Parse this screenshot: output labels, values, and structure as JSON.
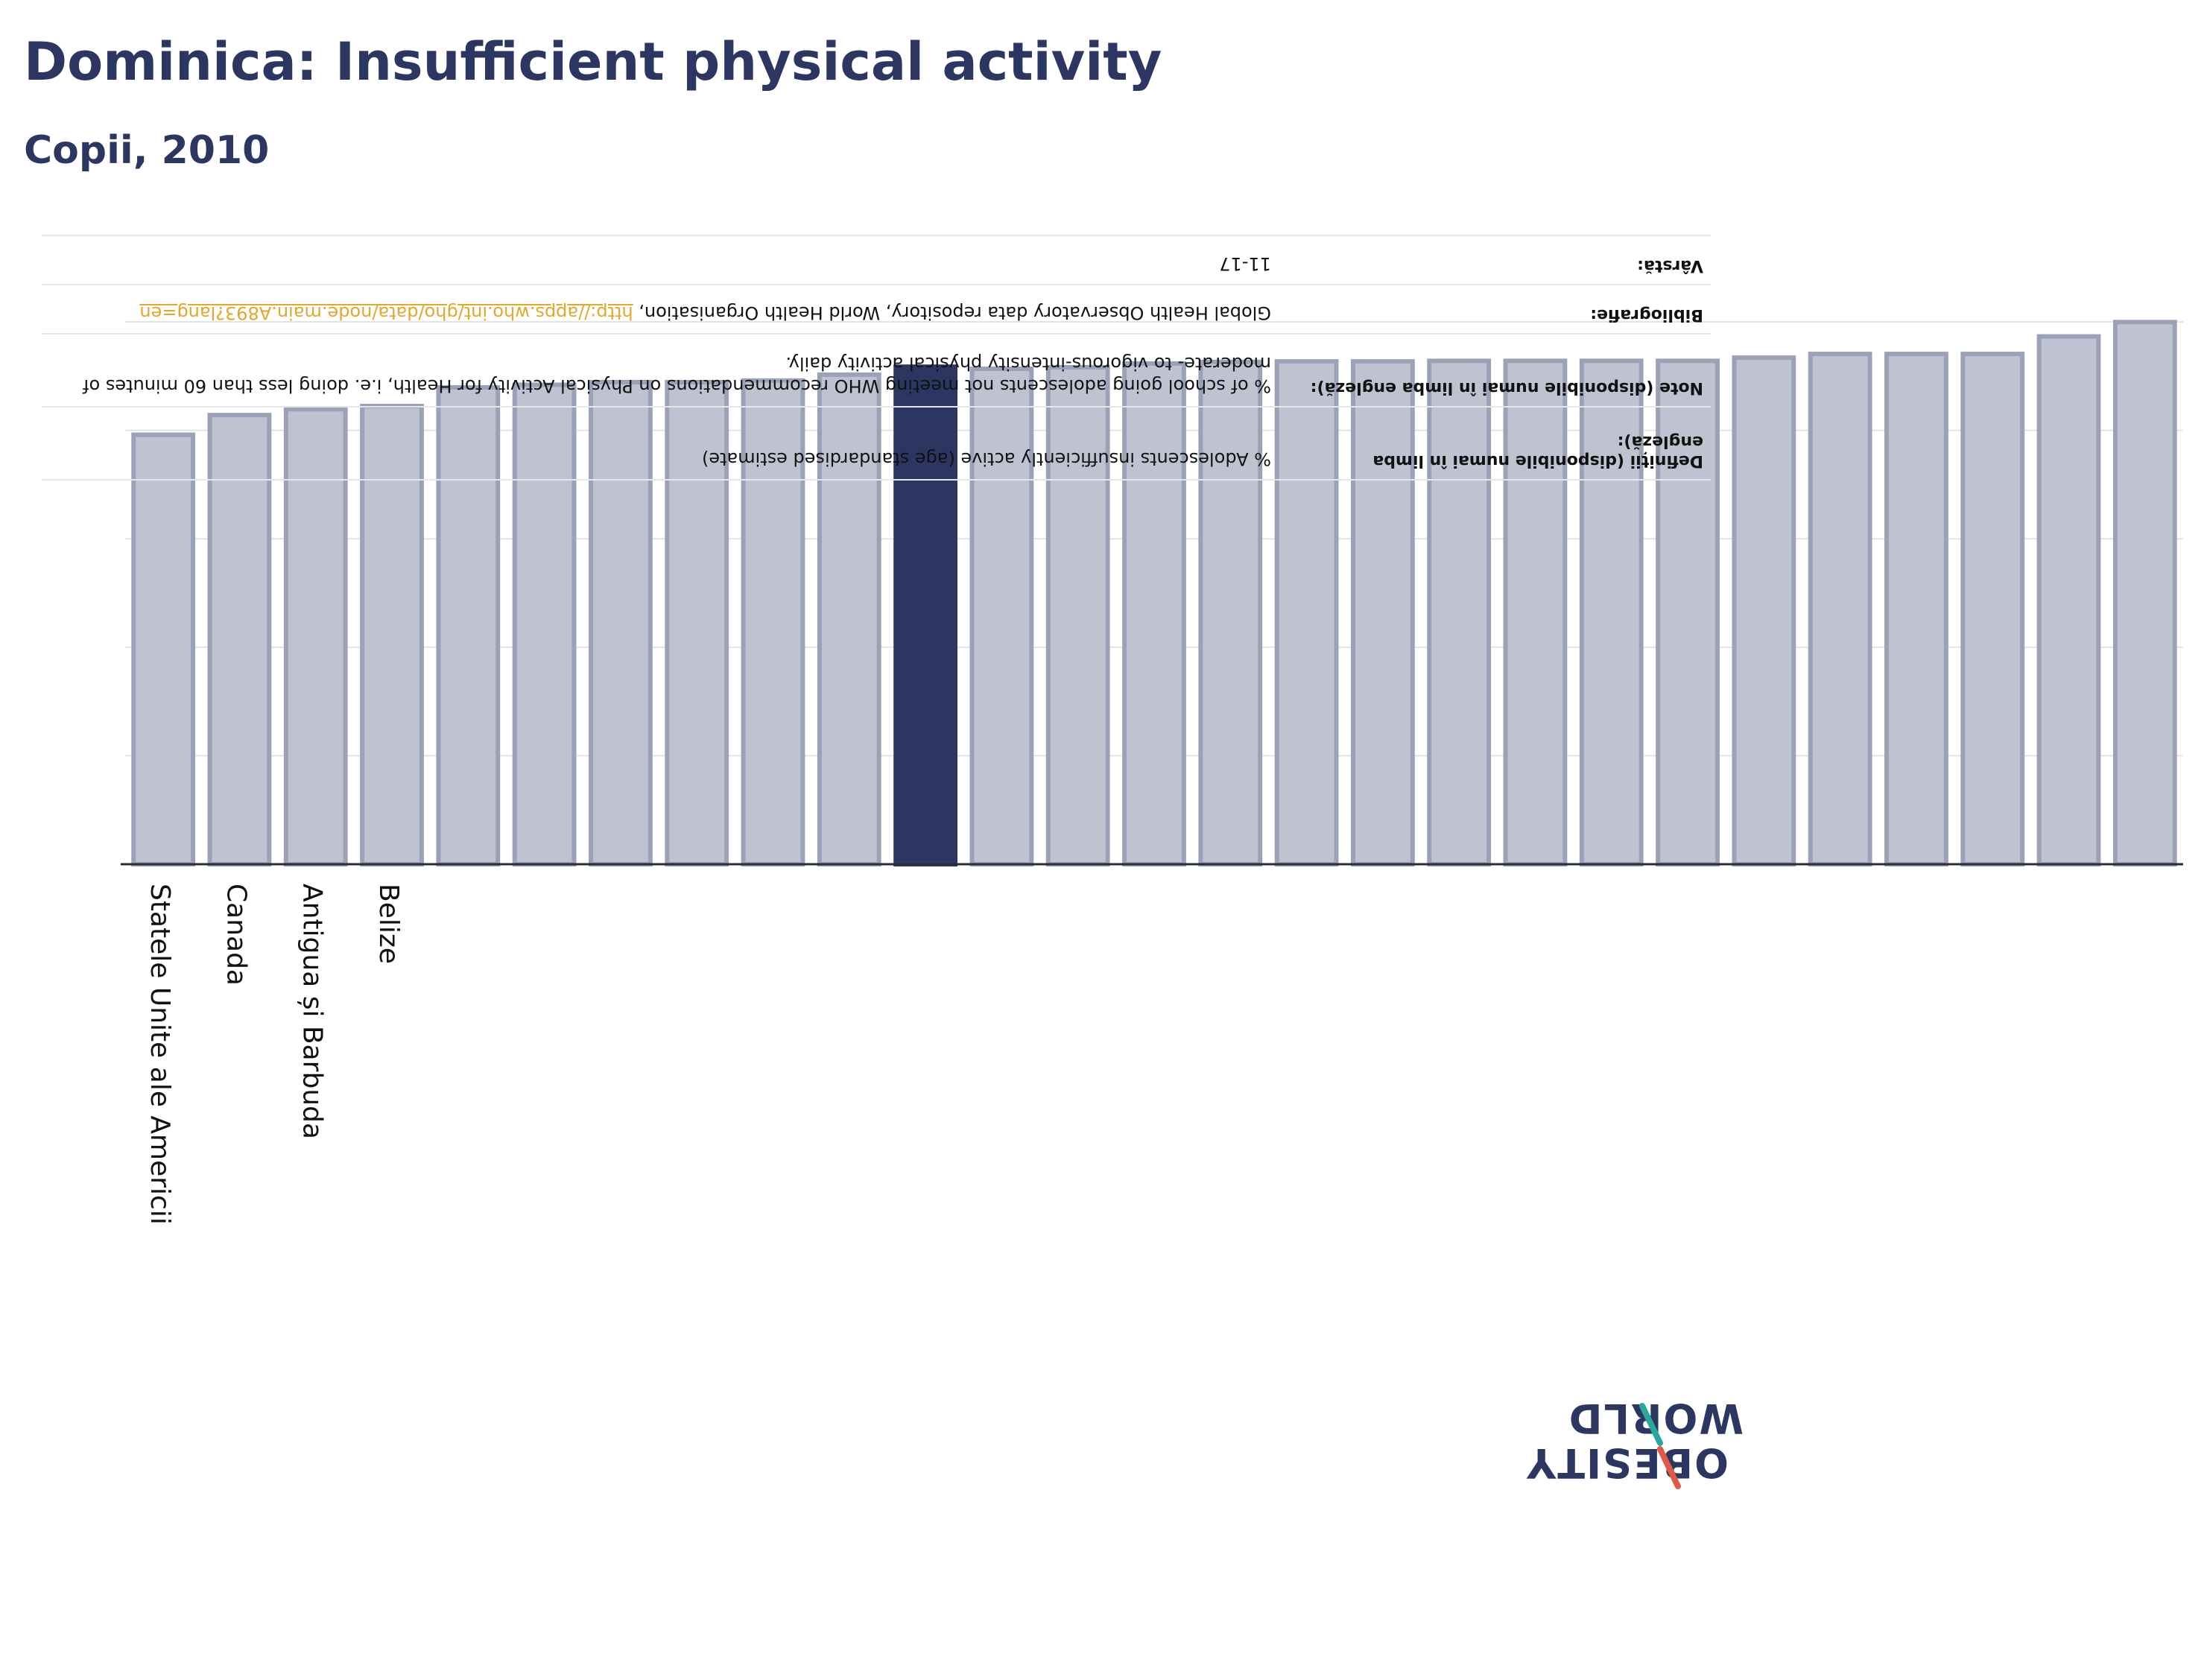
{
  "chart_data": {
    "type": "bar",
    "title": "Dominica: Insufficient physical activity",
    "subtitle": "Copii, 2010",
    "x_labels_visible": [
      "Statele Unite ale Americii",
      "Canada",
      "Antigua și Barbuda",
      "Belize"
    ],
    "highlight_index": 10,
    "values": [
      80.8,
      84.5,
      85.6,
      86.2,
      89.7,
      90.2,
      90.7,
      90.7,
      91.0,
      92.1,
      93.6,
      93.2,
      93.5,
      94.2,
      94.5,
      94.6,
      94.6,
      94.7,
      94.7,
      94.7,
      94.7,
      95.3,
      96.0,
      96.0,
      96.0,
      99.3,
      102.0
    ],
    "ylim": [
      0,
      115
    ],
    "grid": true,
    "colors": {
      "bar": "#bfc3d1",
      "bar_border": "#9ba2b8",
      "highlight": "#2b3661",
      "axis": "#2b2b3a",
      "grid": "#e3e3e3"
    }
  },
  "info_table": {
    "rows": [
      {
        "label": "Definiții (disponibile numai în limba engleză):",
        "value": "% Adolescents insufficiently active (age standardised estimate)"
      },
      {
        "label": "Note (disponibile numai în limba engleză):",
        "value": "% of school going adolescents not meeting WHO recommendations on Physical Activity for Health, i.e. doing less than 60 minutes of moderate- to vigorous-intensity physical activity daily."
      },
      {
        "label": "Bibliografie:",
        "value": "Global Health Observatory data repository, World Health Organisation, ",
        "link": "http://apps.who.int/gho/data/node.main.A893?lang=en"
      },
      {
        "label": "Vârstă:",
        "value": "11-17"
      }
    ]
  },
  "logo": {
    "line1": "WORLD",
    "line2": "OBESITY"
  }
}
